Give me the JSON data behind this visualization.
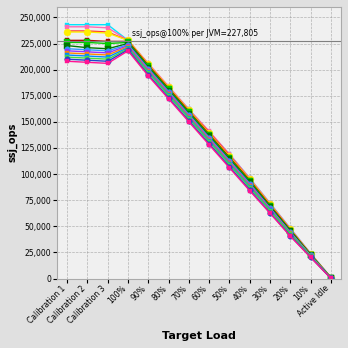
{
  "x_labels": [
    "Calibration 1",
    "Calibration 2",
    "Calibration 3",
    "100%",
    "90%",
    "80%",
    "70%",
    "60%",
    "50%",
    "40%",
    "30%",
    "20%",
    "10%",
    "Active Idle"
  ],
  "hline_y": 227805,
  "hline_label": "ssj_ops@100% per JVM=227,805",
  "ylim": [
    0,
    260000
  ],
  "yticks": [
    0,
    25000,
    50000,
    75000,
    100000,
    125000,
    150000,
    175000,
    200000,
    225000,
    250000
  ],
  "ylabel": "ssj_ops",
  "xlabel": "Target Load",
  "background_color": "#e0e0e0",
  "plot_background": "#f0f0f0",
  "series": [
    {
      "color": "#00e5ff",
      "marker": "s",
      "markersize": 3,
      "linewidth": 1.0,
      "values": [
        243000,
        243000,
        243000,
        228000,
        205000,
        183000,
        162000,
        140000,
        119000,
        96000,
        72000,
        48000,
        24000,
        1200
      ]
    },
    {
      "color": "#ff69b4",
      "marker": "s",
      "markersize": 3,
      "linewidth": 1.0,
      "values": [
        241000,
        241000,
        240000,
        228000,
        206000,
        184000,
        162000,
        141000,
        119000,
        96000,
        72000,
        48000,
        24000,
        1100
      ]
    },
    {
      "color": "#ff3333",
      "marker": "^",
      "markersize": 3,
      "linewidth": 1.0,
      "values": [
        237000,
        237000,
        236000,
        228000,
        205000,
        183000,
        161000,
        140000,
        118000,
        95000,
        71000,
        47000,
        23500,
        900
      ]
    },
    {
      "color": "#ffee00",
      "marker": "o",
      "markersize": 5,
      "linewidth": 1.0,
      "values": [
        236000,
        236000,
        235000,
        228000,
        205000,
        183000,
        161000,
        139000,
        117000,
        95000,
        71000,
        47000,
        23500,
        1000
      ]
    },
    {
      "color": "#aa0000",
      "marker": "s",
      "markersize": 3,
      "linewidth": 1.0,
      "values": [
        228000,
        228000,
        227000,
        227000,
        204000,
        182000,
        160000,
        138000,
        116000,
        94000,
        70000,
        46500,
        23000,
        800
      ]
    },
    {
      "color": "#00cc00",
      "marker": "s",
      "markersize": 4,
      "linewidth": 1.0,
      "values": [
        226000,
        226000,
        225000,
        226000,
        203000,
        181000,
        159000,
        137000,
        115000,
        93000,
        69000,
        46000,
        23000,
        700
      ]
    },
    {
      "color": "#007700",
      "marker": "s",
      "markersize": 4,
      "linewidth": 1.0,
      "values": [
        223000,
        221000,
        220000,
        225000,
        202000,
        180000,
        158000,
        136000,
        114000,
        92000,
        68500,
        45500,
        22700,
        600
      ]
    },
    {
      "color": "#3399ff",
      "marker": "o",
      "markersize": 4,
      "linewidth": 1.0,
      "values": [
        220000,
        219000,
        218000,
        224000,
        201000,
        179000,
        157000,
        135000,
        113000,
        91000,
        67500,
        44500,
        22200,
        500
      ]
    },
    {
      "color": "#9933ff",
      "marker": "s",
      "markersize": 3,
      "linewidth": 1.0,
      "values": [
        218000,
        217000,
        216000,
        223000,
        200000,
        178000,
        156000,
        134000,
        112000,
        90000,
        67000,
        44000,
        22000,
        450
      ]
    },
    {
      "color": "#ff8800",
      "marker": "s",
      "markersize": 3,
      "linewidth": 1.0,
      "values": [
        216000,
        215000,
        214000,
        222000,
        199000,
        177000,
        155000,
        133000,
        111000,
        89000,
        66000,
        43500,
        21800,
        400
      ]
    },
    {
      "color": "#0088ff",
      "marker": "s",
      "markersize": 3,
      "linewidth": 1.0,
      "values": [
        214000,
        213000,
        212000,
        221000,
        198000,
        176000,
        154000,
        132000,
        110000,
        88000,
        65500,
        43000,
        21500,
        350
      ]
    },
    {
      "color": "#44dd44",
      "marker": "s",
      "markersize": 3,
      "linewidth": 1.0,
      "values": [
        212000,
        211000,
        210000,
        220000,
        197000,
        175000,
        153000,
        131000,
        109000,
        87000,
        65000,
        42500,
        21200,
        300
      ]
    },
    {
      "color": "#2244cc",
      "marker": "o",
      "markersize": 4,
      "linewidth": 1.0,
      "values": [
        210000,
        209000,
        208000,
        219000,
        195000,
        173000,
        151000,
        129000,
        107000,
        85000,
        63000,
        41000,
        20500,
        250
      ]
    },
    {
      "color": "#ff1493",
      "marker": "s",
      "markersize": 3,
      "linewidth": 1.0,
      "values": [
        208000,
        207000,
        206000,
        218000,
        194000,
        172000,
        150000,
        128000,
        106000,
        84000,
        62500,
        40500,
        20200,
        200
      ]
    }
  ]
}
